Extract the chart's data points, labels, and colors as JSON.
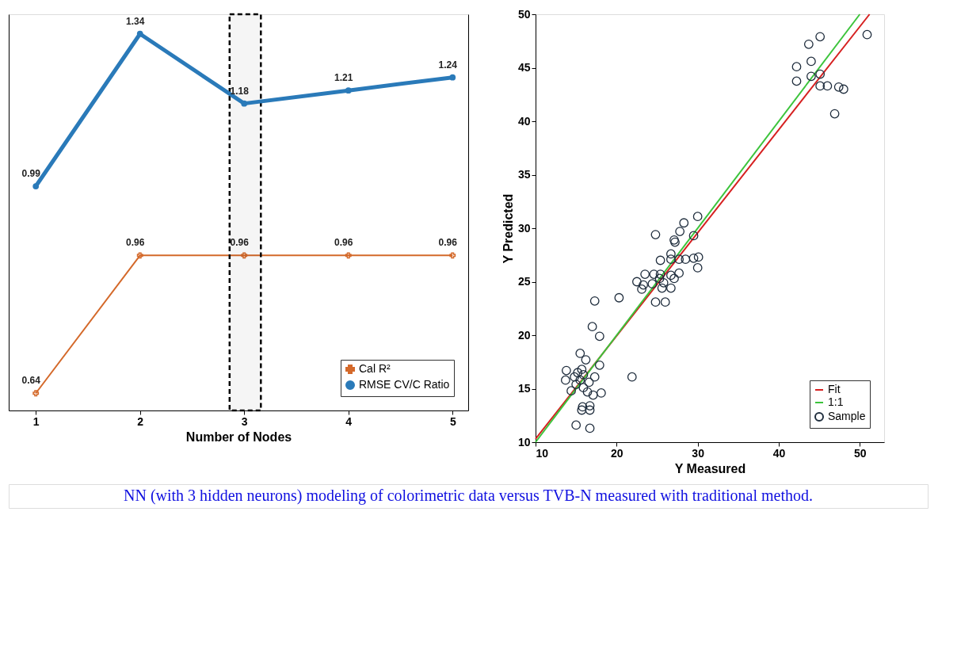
{
  "chart_data": [
    {
      "type": "line",
      "xlabel": "Number of Nodes",
      "xlim": [
        0.74,
        5.15
      ],
      "xticks": [
        1,
        2,
        3,
        4,
        5
      ],
      "ylim": [
        0.6,
        1.52
      ],
      "y2lim": [
        0.475,
        1.385
      ],
      "tick_labels": "x",
      "grid": false,
      "legend": "bottom right",
      "data_labels": true,
      "series": [
        {
          "name": "Cal R²",
          "color": "#d4692a",
          "marker": "cross",
          "x": [
            1,
            2,
            3,
            4,
            5
          ],
          "values": [
            0.64,
            0.96,
            0.96,
            0.96,
            0.96
          ]
        },
        {
          "name": "RMSE CV/C Ratio",
          "color": "#2a7ab9",
          "marker": "circle",
          "axis": "y2",
          "x": [
            1,
            2,
            3,
            4,
            5
          ],
          "values": [
            0.99,
            1.34,
            1.18,
            1.21,
            1.24
          ]
        }
      ],
      "bands": [
        {
          "axis": "x",
          "from": 2.86,
          "to": 3.16,
          "color": "#000000"
        }
      ],
      "annotations": [
        "NN (with 3 hidden neurons) modeling of colorimetric data versus TVB-N measured with traditional method."
      ]
    },
    {
      "type": "scatter",
      "xlabel": "Y Measured",
      "ylabel": "Y Predicted",
      "xlim": [
        10,
        53
      ],
      "xticks": [
        10,
        20,
        30,
        40,
        50
      ],
      "ylim": [
        10,
        50
      ],
      "yticks": [
        10,
        15,
        20,
        25,
        30,
        35,
        40,
        45,
        50
      ],
      "grid": false,
      "legend": "bottom right",
      "series": [
        {
          "name": "Fit",
          "type": "line",
          "color": "#d62020",
          "x": [
            10,
            51.2
          ],
          "values": [
            10.3,
            50
          ]
        },
        {
          "name": "1:1",
          "type": "line",
          "color": "#3cc43c",
          "x": [
            10,
            50
          ],
          "values": [
            10,
            50
          ]
        },
        {
          "name": "Sample",
          "type": "scatter",
          "color": "#1f2d3d",
          "marker": "circle",
          "x": [
            45.1,
            43.7,
            42.2,
            44.0,
            42.2,
            44.0,
            45.1,
            45.1,
            46.0,
            47.4,
            48.0,
            46.9,
            50.9,
            30.0,
            28.3,
            27.8,
            27.1,
            27.2,
            29.5,
            24.8,
            25.4,
            26.7,
            26.7,
            27.7,
            28.5,
            29.5,
            30.1,
            30.0,
            27.7,
            26.7,
            25.4,
            24.6,
            23.5,
            22.5,
            23.3,
            24.4,
            25.3,
            25.8,
            27.1,
            26.7,
            25.6,
            23.1,
            24.8,
            26.0,
            20.3,
            17.3,
            17.0,
            17.9,
            21.9,
            17.9,
            15.5,
            16.2,
            13.8,
            13.7,
            14.4,
            15.2,
            15.5,
            15.9,
            15.0,
            15.9,
            17.3,
            17.1,
            18.1,
            16.4,
            15.8,
            16.7,
            15.7,
            16.7,
            15.0,
            16.7,
            14.8,
            15.7,
            16.6
          ],
          "values": [
            47.9,
            47.2,
            45.1,
            45.6,
            43.75,
            44.2,
            44.4,
            43.3,
            43.3,
            43.2,
            43.0,
            40.7,
            48.1,
            31.1,
            30.5,
            29.7,
            28.9,
            28.7,
            29.3,
            29.4,
            27.0,
            27.6,
            27.1,
            27.1,
            27.1,
            27.2,
            27.3,
            26.3,
            25.8,
            25.6,
            25.7,
            25.7,
            25.7,
            25.0,
            24.7,
            24.8,
            25.3,
            24.9,
            25.3,
            24.4,
            24.4,
            24.3,
            23.1,
            23.1,
            23.5,
            23.2,
            20.8,
            19.9,
            16.1,
            17.2,
            18.3,
            17.7,
            16.7,
            15.8,
            14.8,
            16.5,
            15.8,
            16.3,
            15.4,
            15.1,
            16.1,
            14.4,
            14.6,
            14.7,
            13.3,
            13.4,
            13.0,
            13.0,
            11.6,
            11.3,
            16.1,
            16.8,
            15.6
          ]
        }
      ]
    }
  ]
}
